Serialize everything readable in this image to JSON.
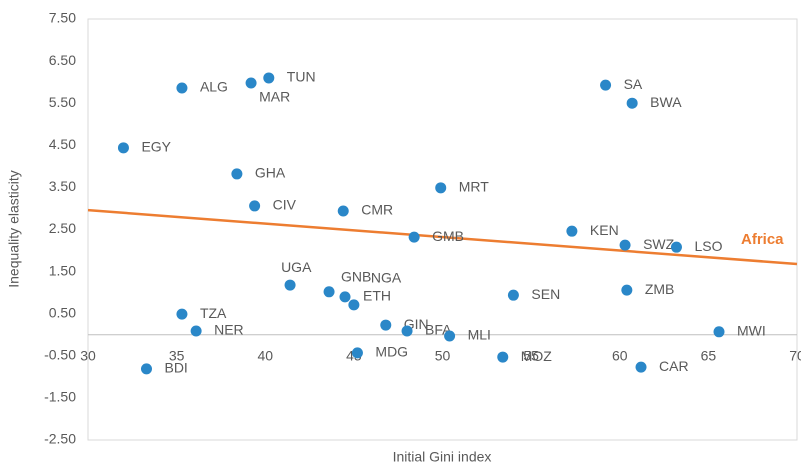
{
  "chart_data": {
    "type": "scatter",
    "x_label": "Initial Gini index",
    "y_label": "Inequality elasticity",
    "xlim": [
      30,
      70
    ],
    "xticks": [
      30,
      35,
      40,
      45,
      50,
      55,
      60,
      65,
      70
    ],
    "ylim": [
      -2.5,
      7.5
    ],
    "yticks": [
      {
        "value": -2.5,
        "label": "-2.50"
      },
      {
        "value": -1.5,
        "label": "-1.50"
      },
      {
        "value": -0.5,
        "label": "-0.50"
      },
      {
        "value": 0.5,
        "label": "0.50"
      },
      {
        "value": 1.5,
        "label": "1.50"
      },
      {
        "value": 2.5,
        "label": "2.50"
      },
      {
        "value": 3.5,
        "label": "3.50"
      },
      {
        "value": 4.5,
        "label": "4.50"
      },
      {
        "value": 5.5,
        "label": "5.50"
      },
      {
        "value": 6.5,
        "label": "6.50"
      },
      {
        "value": 7.5,
        "label": "7.50"
      }
    ],
    "points": {
      "color": "#2a87c8",
      "labels": [
        "ALG",
        "MAR",
        "TUN",
        "SA",
        "BWA",
        "EGY",
        "GHA",
        "MRT",
        "CIV",
        "CMR",
        "GMB",
        "KEN",
        "SWZ",
        "LSO",
        "UGA",
        "GNB",
        "ETH",
        "NGA",
        "ZMB",
        "SEN",
        "TZA",
        "NER",
        "GIN",
        "BFA",
        "MLI",
        "MWI",
        "MDG",
        "MOZ",
        "BDI",
        "CAR"
      ],
      "x": [
        35.3,
        39.2,
        40.2,
        59.2,
        60.7,
        32.0,
        38.4,
        49.9,
        39.4,
        44.4,
        48.4,
        57.3,
        60.3,
        63.2,
        41.4,
        43.6,
        44.5,
        45.0,
        60.4,
        54.0,
        35.3,
        36.1,
        46.8,
        48.0,
        50.4,
        65.6,
        45.2,
        53.4,
        33.3,
        61.2
      ],
      "values": [
        5.86,
        5.98,
        6.1,
        5.93,
        5.5,
        4.44,
        3.82,
        3.49,
        3.06,
        2.94,
        2.32,
        2.46,
        2.13,
        2.08,
        1.18,
        1.02,
        0.9,
        0.71,
        1.06,
        0.94,
        0.49,
        0.09,
        0.23,
        0.09,
        -0.03,
        0.07,
        -0.43,
        -0.53,
        -0.81,
        -0.77
      ]
    },
    "trend": {
      "name": "Africa",
      "color": "#ed7d31",
      "x": [
        30,
        70
      ],
      "values": [
        2.96,
        1.68
      ]
    }
  }
}
